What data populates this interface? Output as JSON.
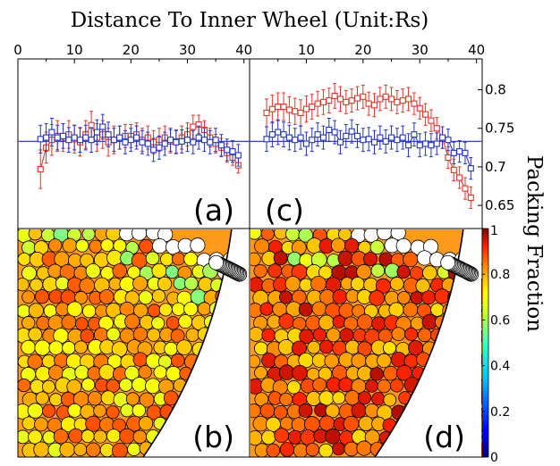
{
  "title": "Distance To Inner Wheel (Unit:Rs)",
  "colorbar_label": "Packing Fraction",
  "colors": {
    "red_series": "#e8332a",
    "blue_series": "#2233cc",
    "reference_line": "#3344dd"
  },
  "chart_data": [
    {
      "type": "line",
      "panel_label": "(a)",
      "xlabel": "Distance To Inner Wheel (Unit:Rs)",
      "x_ticks": [
        "0",
        "10",
        "20",
        "30",
        "40"
      ],
      "xlim": [
        0,
        41
      ],
      "ylim": [
        0.62,
        0.84
      ],
      "reference_y": 0.733,
      "grid": false,
      "x": [
        4,
        5,
        6,
        7,
        8,
        9,
        10,
        11,
        12,
        13,
        14,
        15,
        16,
        17,
        18,
        19,
        20,
        21,
        22,
        23,
        24,
        25,
        26,
        27,
        28,
        29,
        30,
        31,
        32,
        33,
        34,
        35,
        36,
        37,
        38,
        39
      ],
      "series": [
        {
          "color": "#e8332a",
          "marker": "square",
          "values": [
            0.697,
            0.725,
            0.735,
            0.74,
            0.738,
            0.742,
            0.736,
            0.732,
            0.742,
            0.754,
            0.738,
            0.742,
            0.732,
            0.735,
            0.738,
            0.74,
            0.74,
            0.742,
            0.735,
            0.738,
            0.732,
            0.735,
            0.738,
            0.733,
            0.733,
            0.738,
            0.742,
            0.752,
            0.755,
            0.748,
            0.738,
            0.73,
            0.725,
            0.718,
            0.712,
            0.702
          ],
          "errors": [
            0.025,
            0.02,
            0.02,
            0.02,
            0.018,
            0.018,
            0.018,
            0.018,
            0.018,
            0.018,
            0.018,
            0.018,
            0.018,
            0.018,
            0.015,
            0.015,
            0.015,
            0.015,
            0.015,
            0.015,
            0.015,
            0.015,
            0.015,
            0.015,
            0.015,
            0.015,
            0.015,
            0.015,
            0.012,
            0.012,
            0.012,
            0.012,
            0.012,
            0.012,
            0.01,
            0.01
          ]
        },
        {
          "color": "#2233cc",
          "marker": "square",
          "values": [
            0.736,
            0.738,
            0.745,
            0.738,
            0.74,
            0.735,
            0.738,
            0.735,
            0.738,
            0.735,
            0.745,
            0.752,
            0.742,
            0.735,
            0.738,
            0.732,
            0.735,
            0.738,
            0.732,
            0.73,
            0.722,
            0.725,
            0.73,
            0.735,
            0.732,
            0.733,
            0.735,
            0.732,
            0.738,
            0.735,
            0.732,
            0.735,
            0.728,
            0.722,
            0.72,
            0.715
          ],
          "errors": [
            0.018,
            0.018,
            0.018,
            0.016,
            0.016,
            0.016,
            0.016,
            0.016,
            0.016,
            0.016,
            0.016,
            0.016,
            0.016,
            0.015,
            0.015,
            0.015,
            0.015,
            0.015,
            0.015,
            0.015,
            0.015,
            0.015,
            0.015,
            0.015,
            0.015,
            0.015,
            0.015,
            0.015,
            0.015,
            0.015,
            0.015,
            0.015,
            0.014,
            0.014,
            0.014,
            0.014
          ]
        }
      ]
    },
    {
      "type": "line",
      "panel_label": "(c)",
      "xlabel": "Distance To Inner Wheel (Unit:Rs)",
      "x_ticks": [
        "10",
        "20",
        "30",
        "40"
      ],
      "xlim": [
        0,
        41
      ],
      "ylim": [
        0.62,
        0.84
      ],
      "y_ticks": [
        "0.65",
        "0.7",
        "0.75",
        "0.8"
      ],
      "ylabel": "Packing Fraction",
      "reference_y": 0.733,
      "grid": false,
      "x": [
        3,
        4,
        5,
        6,
        7,
        8,
        9,
        10,
        11,
        12,
        13,
        14,
        15,
        16,
        17,
        18,
        19,
        20,
        21,
        22,
        23,
        24,
        25,
        26,
        27,
        28,
        29,
        30,
        31,
        32,
        33,
        34,
        35,
        36,
        37,
        38,
        39
      ],
      "series": [
        {
          "color": "#e8332a",
          "marker": "square",
          "values": [
            0.77,
            0.775,
            0.778,
            0.778,
            0.774,
            0.772,
            0.77,
            0.775,
            0.778,
            0.782,
            0.784,
            0.786,
            0.792,
            0.788,
            0.784,
            0.786,
            0.789,
            0.791,
            0.782,
            0.78,
            0.788,
            0.791,
            0.788,
            0.784,
            0.786,
            0.788,
            0.782,
            0.776,
            0.768,
            0.76,
            0.75,
            0.738,
            0.712,
            0.696,
            0.686,
            0.672,
            0.66
          ],
          "errors": [
            0.018,
            0.018,
            0.018,
            0.018,
            0.017,
            0.017,
            0.017,
            0.017,
            0.016,
            0.016,
            0.016,
            0.016,
            0.016,
            0.016,
            0.015,
            0.015,
            0.015,
            0.015,
            0.015,
            0.015,
            0.015,
            0.015,
            0.015,
            0.015,
            0.015,
            0.015,
            0.014,
            0.014,
            0.014,
            0.014,
            0.014,
            0.014,
            0.014,
            0.014,
            0.014,
            0.014,
            0.014
          ]
        },
        {
          "color": "#2233cc",
          "marker": "square",
          "values": [
            0.736,
            0.742,
            0.745,
            0.742,
            0.738,
            0.735,
            0.738,
            0.73,
            0.735,
            0.742,
            0.738,
            0.748,
            0.745,
            0.732,
            0.74,
            0.746,
            0.74,
            0.735,
            0.736,
            0.732,
            0.738,
            0.733,
            0.738,
            0.735,
            0.738,
            0.728,
            0.742,
            0.728,
            0.73,
            0.728,
            0.73,
            0.738,
            0.735,
            0.718,
            0.72,
            0.718,
            0.698
          ],
          "errors": [
            0.016,
            0.016,
            0.016,
            0.016,
            0.016,
            0.015,
            0.015,
            0.015,
            0.015,
            0.015,
            0.015,
            0.015,
            0.015,
            0.015,
            0.015,
            0.015,
            0.015,
            0.015,
            0.015,
            0.015,
            0.015,
            0.015,
            0.015,
            0.015,
            0.015,
            0.015,
            0.015,
            0.015,
            0.015,
            0.015,
            0.014,
            0.014,
            0.014,
            0.014,
            0.014,
            0.014,
            0.014
          ]
        }
      ]
    },
    {
      "type": "heatmap",
      "panel_label": "(b)",
      "description_color_range": [
        0,
        1
      ]
    },
    {
      "type": "heatmap",
      "panel_label": "(d)",
      "description_color_range": [
        0,
        1
      ]
    },
    {
      "type": "colorbar",
      "ylabel": "Packing Fraction",
      "ylim": [
        0,
        1
      ],
      "ticks": [
        "0",
        "0.2",
        "0.4",
        "0.6",
        "0.8",
        "1"
      ]
    }
  ]
}
